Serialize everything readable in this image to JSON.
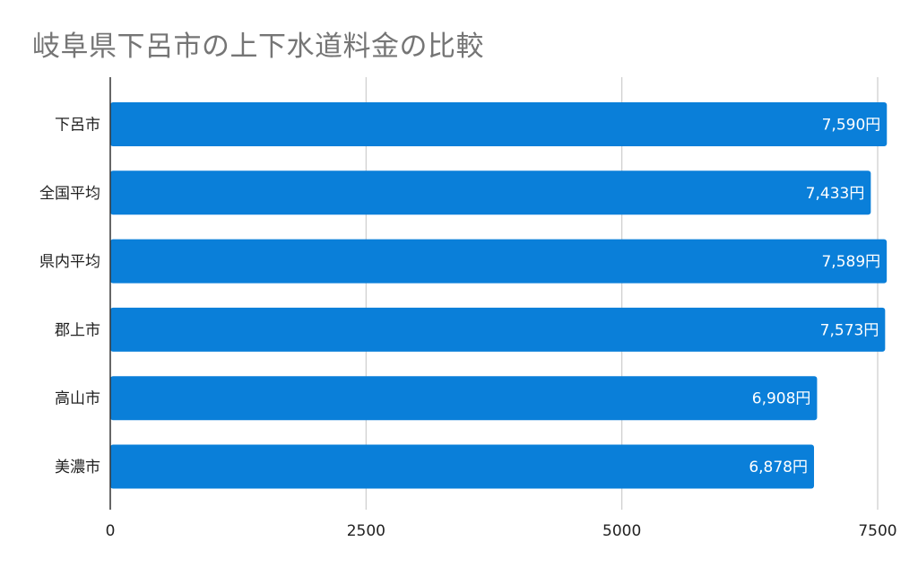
{
  "chart_data": {
    "type": "bar",
    "orientation": "horizontal",
    "title": "岐阜県下呂市の上下水道料金の比較",
    "categories": [
      "下呂市",
      "全国平均",
      "県内平均",
      "郡上市",
      "高山市",
      "美濃市"
    ],
    "values": [
      7590,
      7433,
      7589,
      7573,
      6908,
      6878
    ],
    "data_labels": [
      "7,590円",
      "7,433円",
      "7,589円",
      "7,573円",
      "6,908円",
      "6,878円"
    ],
    "x_ticks": [
      "0",
      "2500",
      "5000",
      "7500"
    ],
    "xlim": [
      0,
      7500
    ],
    "xlabel": "",
    "ylabel": "",
    "grid": true,
    "legend": "none",
    "bar_color": "#0a7fd9",
    "grid_color": "#cccccc",
    "axis_color": "#333333"
  }
}
